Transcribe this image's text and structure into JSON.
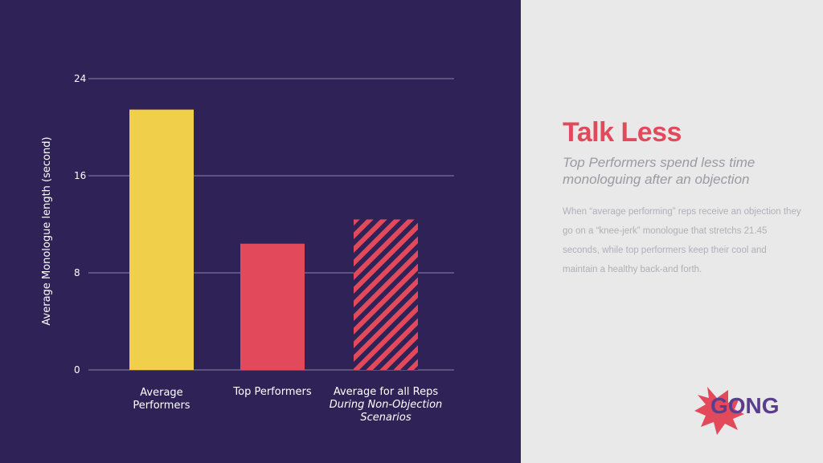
{
  "colors": {
    "background_left": "#2e2256",
    "background_right": "#e9e9ea",
    "accent_red": "#e24a5c",
    "accent_yellow": "#f0cf4a"
  },
  "chart_data": {
    "type": "bar",
    "ylabel": "Average Monologue length (second)",
    "ylim": [
      0,
      24
    ],
    "yticks": [
      "0",
      "8",
      "16",
      "24"
    ],
    "grid": true,
    "categories": [
      {
        "line1": "Average",
        "line2": "Performers",
        "italic": ""
      },
      {
        "line1": "Top Performers",
        "line2": "",
        "italic": "During Non-Objection Scenarios"
      },
      {
        "line1": "Average for all Reps",
        "line2": "",
        "italic": "During Non-Objection Scenarios"
      }
    ],
    "values": [
      21.45,
      10.4,
      12.4
    ],
    "bar_colors": [
      "#f0cf4a",
      "#e24a5c",
      "#e24a5c"
    ],
    "bar_styles": [
      "solid",
      "solid",
      "hatched"
    ]
  },
  "text": {
    "headline": "Talk Less",
    "subhead": "Top Performers spend less time monologuing after an objection",
    "body": "When “average performing” reps receive an objection they go on a “knee-jerk” monologue that stretchs 21.45 seconds, while top performers keep their cool and maintain a healthy back-and forth."
  },
  "logo": {
    "text": "GONG"
  }
}
